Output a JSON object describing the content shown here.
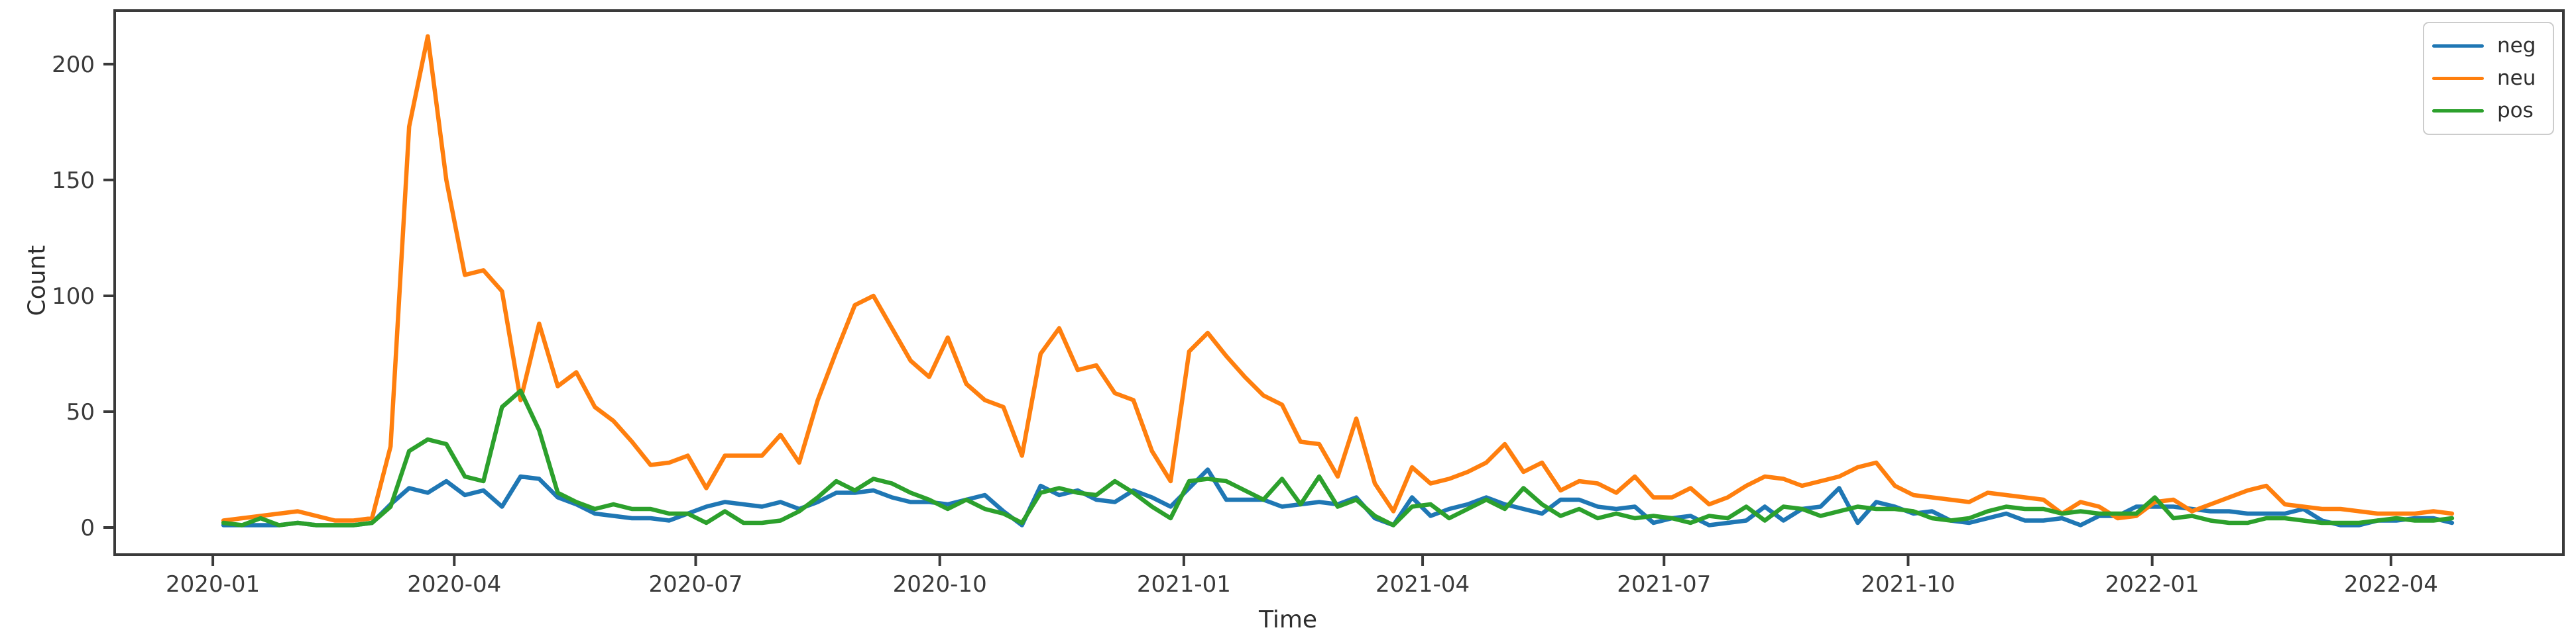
{
  "figure": {
    "background_color": "#ffffff",
    "spine_color": "#3a3a3a",
    "tick_color": "#3a3a3a",
    "text_color": "#2e2e2e"
  },
  "axes": {
    "xlabel": "Time",
    "ylabel": "Count"
  },
  "legend": {
    "position": "upper right",
    "items": [
      {
        "label": "neg",
        "color": "#1f77b4"
      },
      {
        "label": "neu",
        "color": "#ff7f0e"
      },
      {
        "label": "pos",
        "color": "#2ca02c"
      }
    ]
  },
  "chart_data": {
    "type": "line",
    "title": "",
    "xlabel": "Time",
    "ylabel": "Count",
    "grid": false,
    "legend_position": "upper right",
    "x_start_date": "2020-01-05",
    "x_step_days": 7,
    "n_points": 121,
    "xlim_dates": [
      "2019-11-25",
      "2022-06-05"
    ],
    "ylim": [
      -11.7,
      223.1
    ],
    "yticks": [
      0,
      50,
      100,
      150,
      200
    ],
    "xtick_labels": [
      "2020-01",
      "2020-04",
      "2020-07",
      "2020-10",
      "2021-01",
      "2021-04",
      "2021-07",
      "2021-10",
      "2022-01",
      "2022-04"
    ],
    "series": [
      {
        "name": "neg",
        "color": "#1f77b4",
        "values": [
          1,
          1,
          1,
          1,
          2,
          1,
          1,
          1,
          2,
          10,
          17,
          15,
          20,
          14,
          16,
          9,
          22,
          21,
          13,
          10,
          6,
          5,
          4,
          4,
          3,
          6,
          9,
          11,
          10,
          9,
          11,
          8,
          11,
          15,
          15,
          16,
          13,
          11,
          11,
          10,
          12,
          14,
          7,
          1,
          18,
          14,
          16,
          12,
          11,
          16,
          13,
          9,
          17,
          25,
          12,
          12,
          12,
          9,
          10,
          11,
          10,
          13,
          4,
          1,
          13,
          5,
          8,
          10,
          13,
          10,
          8,
          6,
          12,
          12,
          9,
          8,
          9,
          2,
          4,
          5,
          1,
          2,
          3,
          9,
          3,
          8,
          9,
          17,
          2,
          11,
          9,
          6,
          7,
          3,
          2,
          4,
          6,
          3,
          3,
          4,
          1,
          5,
          5,
          9,
          9,
          9,
          8,
          7,
          7,
          6,
          6,
          6,
          8,
          3,
          1,
          1,
          3,
          3,
          4,
          4,
          2
        ]
      },
      {
        "name": "neu",
        "color": "#ff7f0e",
        "values": [
          3,
          4,
          5,
          6,
          7,
          5,
          3,
          3,
          4,
          35,
          173,
          212,
          150,
          109,
          111,
          102,
          55,
          88,
          61,
          67,
          52,
          46,
          37,
          27,
          28,
          31,
          17,
          31,
          31,
          31,
          40,
          28,
          55,
          76,
          96,
          100,
          86,
          72,
          65,
          82,
          62,
          55,
          52,
          31,
          75,
          86,
          68,
          70,
          58,
          55,
          33,
          20,
          76,
          84,
          74,
          65,
          57,
          53,
          37,
          36,
          22,
          47,
          19,
          7,
          26,
          19,
          21,
          24,
          28,
          36,
          24,
          28,
          16,
          20,
          19,
          15,
          22,
          13,
          13,
          17,
          10,
          13,
          18,
          22,
          21,
          18,
          20,
          22,
          26,
          28,
          18,
          14,
          13,
          12,
          11,
          15,
          14,
          13,
          12,
          6,
          11,
          9,
          4,
          5,
          11,
          12,
          7,
          10,
          13,
          16,
          18,
          10,
          9,
          8,
          8,
          7,
          6,
          6,
          6,
          7,
          6
        ]
      },
      {
        "name": "pos",
        "color": "#2ca02c",
        "values": [
          2,
          1,
          4,
          1,
          2,
          1,
          1,
          1,
          2,
          9,
          33,
          38,
          36,
          22,
          20,
          52,
          59,
          42,
          15,
          11,
          8,
          10,
          8,
          8,
          6,
          6,
          2,
          7,
          2,
          2,
          3,
          7,
          13,
          20,
          16,
          21,
          19,
          15,
          12,
          8,
          12,
          8,
          6,
          2,
          15,
          17,
          15,
          14,
          20,
          15,
          9,
          4,
          20,
          21,
          20,
          16,
          12,
          21,
          10,
          22,
          9,
          12,
          5,
          1,
          9,
          10,
          4,
          8,
          12,
          8,
          17,
          10,
          5,
          8,
          4,
          6,
          4,
          5,
          4,
          2,
          5,
          4,
          9,
          3,
          9,
          8,
          5,
          7,
          9,
          8,
          8,
          7,
          4,
          3,
          4,
          7,
          9,
          8,
          8,
          6,
          7,
          6,
          6,
          6,
          13,
          4,
          5,
          3,
          2,
          2,
          4,
          4,
          3,
          2,
          2,
          2,
          3,
          4,
          3,
          3,
          4
        ]
      }
    ]
  }
}
